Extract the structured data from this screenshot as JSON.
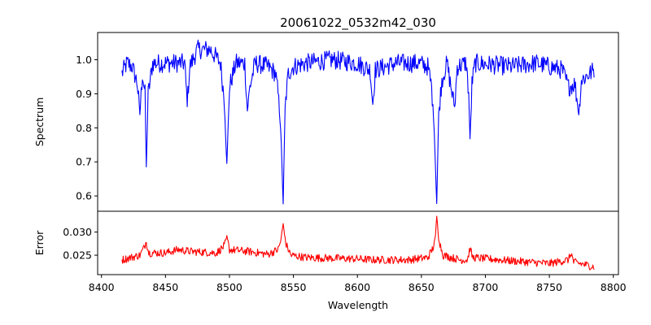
{
  "chart_data": {
    "type": "line",
    "title": "20061022_0532m42_030",
    "xlabel": "Wavelength",
    "x_range": [
      8416,
      8785
    ],
    "xlim": [
      8397,
      8804
    ],
    "xticks": [
      8400,
      8450,
      8500,
      8550,
      8600,
      8650,
      8700,
      8750,
      8800
    ],
    "grid": false,
    "panels": [
      {
        "name": "spectrum-panel",
        "ylabel": "Spectrum",
        "ylim": [
          0.555,
          1.08
        ],
        "yticks": [
          0.6,
          0.7,
          0.8,
          0.9,
          1.0
        ],
        "ytick_format": 1,
        "color": "#0000ff",
        "continuum": 0.985,
        "noise": 0.028,
        "points": [
          [
            8416,
            0.96
          ],
          [
            8420,
            0.99
          ],
          [
            8424,
            0.98
          ],
          [
            8428,
            0.93
          ],
          [
            8430,
            0.84
          ],
          [
            8432,
            0.96
          ],
          [
            8434,
            0.9
          ],
          [
            8435,
            0.68
          ],
          [
            8436.5,
            0.9
          ],
          [
            8440,
            0.99
          ],
          [
            8455,
            0.99
          ],
          [
            8465,
            0.99
          ],
          [
            8467,
            0.87
          ],
          [
            8469,
            0.98
          ],
          [
            8475,
            1.03
          ],
          [
            8485,
            1.03
          ],
          [
            8493,
            0.99
          ],
          [
            8496,
            0.88
          ],
          [
            8498,
            0.69
          ],
          [
            8500,
            0.92
          ],
          [
            8505,
            0.99
          ],
          [
            8512,
            0.99
          ],
          [
            8514,
            0.85
          ],
          [
            8516,
            0.92
          ],
          [
            8520,
            0.99
          ],
          [
            8530,
            0.98
          ],
          [
            8536,
            0.96
          ],
          [
            8538,
            0.9
          ],
          [
            8540,
            0.8
          ],
          [
            8542,
            0.58
          ],
          [
            8543.5,
            0.86
          ],
          [
            8546,
            0.96
          ],
          [
            8550,
            0.98
          ],
          [
            8560,
            0.99
          ],
          [
            8580,
            1.0
          ],
          [
            8600,
            0.99
          ],
          [
            8610,
            0.97
          ],
          [
            8612,
            0.87
          ],
          [
            8614,
            0.97
          ],
          [
            8630,
            0.99
          ],
          [
            8648,
            0.99
          ],
          [
            8655,
            0.98
          ],
          [
            8658,
            0.92
          ],
          [
            8660,
            0.8
          ],
          [
            8662,
            0.58
          ],
          [
            8663.5,
            0.84
          ],
          [
            8666,
            0.94
          ],
          [
            8670,
            0.99
          ],
          [
            8674,
            0.9
          ],
          [
            8676,
            0.86
          ],
          [
            8678,
            0.98
          ],
          [
            8685,
            0.99
          ],
          [
            8687,
            0.9
          ],
          [
            8688,
            0.76
          ],
          [
            8689.5,
            0.93
          ],
          [
            8692,
            0.99
          ],
          [
            8720,
            0.98
          ],
          [
            8740,
            0.99
          ],
          [
            8760,
            0.97
          ],
          [
            8765,
            0.92
          ],
          [
            8770,
            0.93
          ],
          [
            8773,
            0.84
          ],
          [
            8775,
            0.94
          ],
          [
            8785,
            0.97
          ]
        ]
      },
      {
        "name": "error-panel",
        "ylabel": "Error",
        "ylim": [
          0.0208,
          0.0345
        ],
        "yticks": [
          0.025,
          0.03
        ],
        "ytick_format": 3,
        "color": "#ff0000",
        "continuum": 0.0245,
        "noise": 0.00085,
        "points": [
          [
            8416,
            0.024
          ],
          [
            8430,
            0.025
          ],
          [
            8433,
            0.0265
          ],
          [
            8435,
            0.028
          ],
          [
            8437,
            0.0255
          ],
          [
            8450,
            0.0255
          ],
          [
            8460,
            0.0262
          ],
          [
            8470,
            0.0258
          ],
          [
            8490,
            0.0255
          ],
          [
            8496,
            0.027
          ],
          [
            8498,
            0.029
          ],
          [
            8500,
            0.0262
          ],
          [
            8515,
            0.0258
          ],
          [
            8530,
            0.0252
          ],
          [
            8538,
            0.0262
          ],
          [
            8540,
            0.028
          ],
          [
            8542,
            0.0318
          ],
          [
            8544,
            0.0275
          ],
          [
            8548,
            0.025
          ],
          [
            8560,
            0.0245
          ],
          [
            8600,
            0.0242
          ],
          [
            8612,
            0.024
          ],
          [
            8640,
            0.024
          ],
          [
            8655,
            0.0245
          ],
          [
            8659,
            0.0265
          ],
          [
            8661,
            0.029
          ],
          [
            8662,
            0.0335
          ],
          [
            8663.5,
            0.0285
          ],
          [
            8667,
            0.025
          ],
          [
            8680,
            0.024
          ],
          [
            8686,
            0.024
          ],
          [
            8688,
            0.0265
          ],
          [
            8690,
            0.0245
          ],
          [
            8720,
            0.0238
          ],
          [
            8750,
            0.0232
          ],
          [
            8765,
            0.024
          ],
          [
            8767,
            0.0255
          ],
          [
            8769,
            0.0235
          ],
          [
            8785,
            0.0225
          ]
        ]
      }
    ]
  }
}
